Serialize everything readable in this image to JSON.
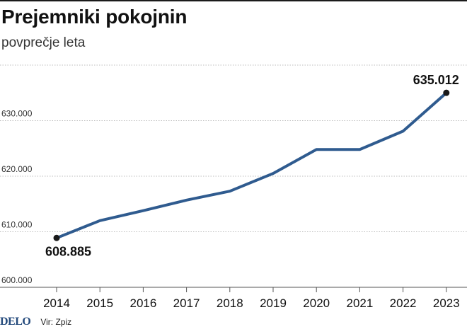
{
  "header": {
    "title": "Prejemniki pokojnin",
    "subtitle": "povprečje leta"
  },
  "footer": {
    "logo": "DELO",
    "source": "Vir: Zpiz"
  },
  "colors": {
    "line": "#2f5b8f",
    "point": "#1a1a1a",
    "grid": "#bdbdbd",
    "text": "#111111"
  },
  "chart_data": {
    "type": "line",
    "title": "Prejemniki pokojnin",
    "subtitle": "povprečje leta",
    "xlabel": "",
    "ylabel": "",
    "x": [
      "2014",
      "2015",
      "2016",
      "2017",
      "2018",
      "2019",
      "2020",
      "2021",
      "2022",
      "2023"
    ],
    "series": [
      {
        "values": [
          608885,
          612000,
          613800,
          615700,
          617300,
          620500,
          624800,
          624800,
          628100,
          635012
        ]
      }
    ],
    "ylim": [
      600000,
      640000
    ],
    "yticks": [
      {
        "value": 600000,
        "label": "600.000"
      },
      {
        "value": 610000,
        "label": "610.000"
      },
      {
        "value": 620000,
        "label": "620.000"
      },
      {
        "value": 630000,
        "label": "630.000"
      }
    ],
    "grid": true,
    "legend": false,
    "annotations": [
      {
        "index": 0,
        "label": "608.885"
      },
      {
        "index": 9,
        "label": "635.012"
      }
    ]
  }
}
